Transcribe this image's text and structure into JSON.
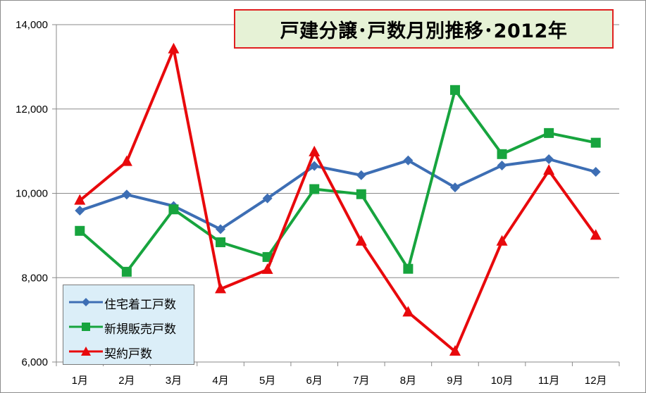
{
  "chart_data": {
    "type": "line",
    "title": "戸建分譲･戸数月別推移･2012年",
    "categories": [
      "1月",
      "2月",
      "3月",
      "4月",
      "5月",
      "6月",
      "7月",
      "8月",
      "9月",
      "10月",
      "11月",
      "12月"
    ],
    "ylim": [
      6000,
      14000
    ],
    "yticks": [
      6000,
      8000,
      10000,
      12000,
      14000
    ],
    "ytick_labels": [
      "6,000",
      "8,000",
      "10,000",
      "12,000",
      "14,000"
    ],
    "grid": true,
    "legend_position": "bottom-left",
    "series": [
      {
        "name": "住宅着工戸数",
        "color": "#3d6eb4",
        "marker": "diamond",
        "values": [
          9590,
          9970,
          9700,
          9150,
          9880,
          10650,
          10430,
          10780,
          10140,
          10660,
          10810,
          10510
        ]
      },
      {
        "name": "新規販売戸数",
        "color": "#17a43e",
        "marker": "square",
        "values": [
          9110,
          8140,
          9620,
          8840,
          8490,
          10100,
          9980,
          8210,
          12450,
          10930,
          11430,
          11200
        ]
      },
      {
        "name": "契約戸数",
        "color": "#e8090c",
        "marker": "triangle",
        "values": [
          9830,
          10750,
          13420,
          7730,
          8190,
          10980,
          8860,
          7180,
          6250,
          8860,
          10540,
          9000
        ]
      }
    ]
  }
}
